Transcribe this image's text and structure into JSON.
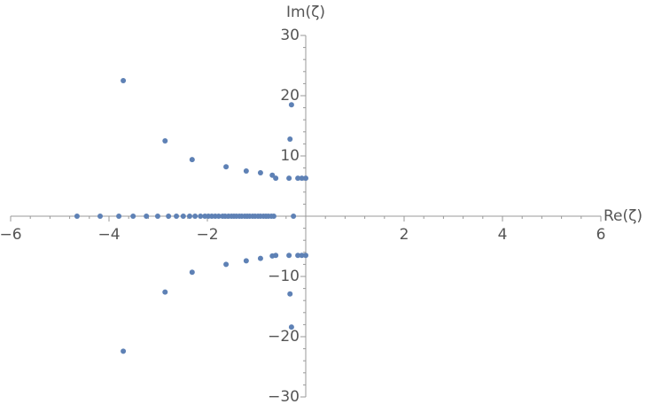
{
  "chart_data": {
    "type": "scatter",
    "xlabel": "Re(ζ)",
    "ylabel": "Im(ζ)",
    "color": "#5e81b5",
    "xlim": [
      -6,
      6
    ],
    "ylim": [
      -30,
      30
    ],
    "xticks": [
      {
        "value": -6,
        "label": "−6"
      },
      {
        "value": -4,
        "label": "−4"
      },
      {
        "value": -2,
        "label": "−2"
      },
      2,
      4,
      6
    ],
    "yticks": [
      30,
      20,
      10,
      {
        "value": -10,
        "label": "−10"
      },
      {
        "value": -20,
        "label": "−20"
      },
      {
        "value": -30,
        "label": "−30"
      }
    ],
    "x": [
      -3.71,
      -2.86,
      -2.31,
      -1.62,
      -1.21,
      -0.92,
      -0.68,
      -0.61,
      -0.34,
      -0.29,
      -0.32,
      -0.16,
      -0.08,
      0.0,
      -3.71,
      -2.86,
      -2.31,
      -1.62,
      -1.21,
      -0.92,
      -0.68,
      -0.61,
      -0.34,
      -0.29,
      -0.32,
      -0.16,
      -0.08,
      0.0,
      -4.65,
      -4.18,
      -3.8,
      -3.51,
      -3.24,
      -3.01,
      -2.79,
      -2.63,
      -2.49,
      -2.36,
      -2.25,
      -2.14,
      -2.05,
      -1.98,
      -1.91,
      -1.84,
      -1.77,
      -1.69,
      -1.64,
      -1.57,
      -1.51,
      -1.46,
      -1.41,
      -1.35,
      -1.3,
      -1.24,
      -1.19,
      -1.14,
      -1.08,
      -1.03,
      -0.97,
      -0.92,
      -0.86,
      -0.81,
      -0.76,
      -0.7,
      -0.65,
      -0.25
    ],
    "y": [
      22.5,
      12.5,
      9.4,
      8.2,
      7.5,
      7.2,
      6.8,
      6.3,
      6.3,
      18.5,
      12.8,
      6.3,
      6.3,
      6.3,
      -22.4,
      -12.6,
      -9.3,
      -8.0,
      -7.4,
      -7.0,
      -6.6,
      -6.5,
      -6.5,
      -18.4,
      -12.9,
      -6.5,
      -6.5,
      -6.5,
      0,
      0,
      0,
      0,
      0,
      0,
      0,
      0,
      0,
      0,
      0,
      0,
      0,
      0,
      0,
      0,
      0,
      0,
      0,
      0,
      0,
      0,
      0,
      0,
      0,
      0,
      0,
      0,
      0,
      0,
      0,
      0,
      0,
      0,
      0,
      0,
      0,
      0
    ]
  }
}
